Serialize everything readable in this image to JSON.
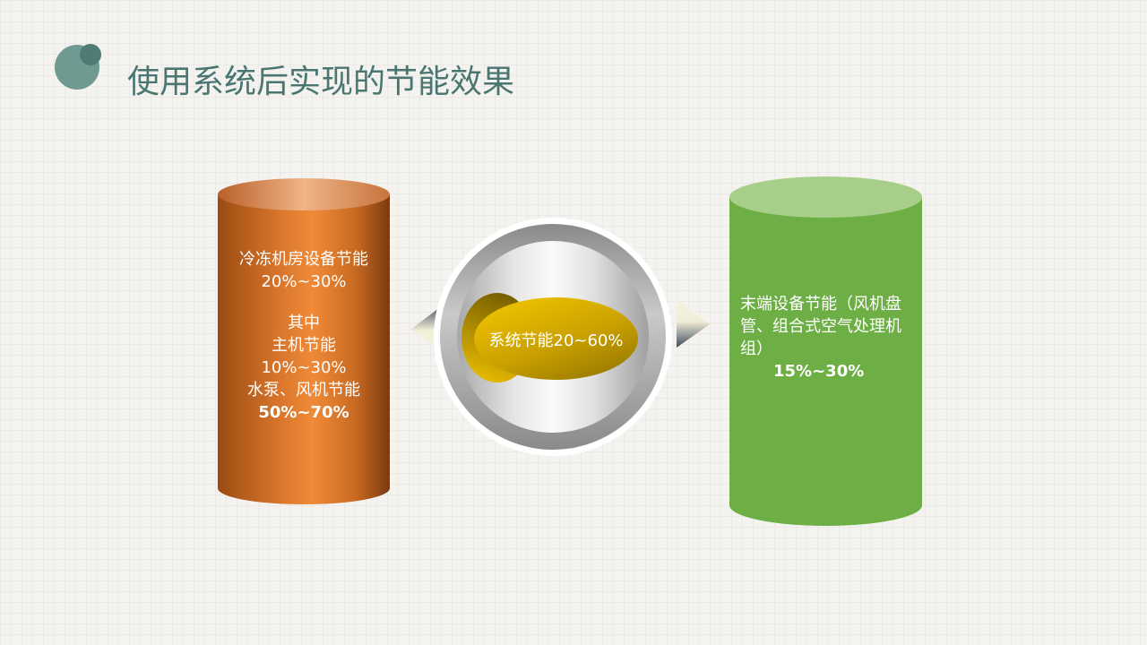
{
  "title": "使用系统后实现的节能效果",
  "colors": {
    "title": "#4a7672",
    "orange": "#e07a2e",
    "green": "#6daf45",
    "gold": "#d4aa00"
  },
  "left_cylinder": {
    "heading": "冷冻机房设备节能",
    "heading_value": "20%~30%",
    "sub_heading": "其中",
    "item1": "主机节能",
    "item1_value": "10%~30%",
    "item2": "水泵、风机节能",
    "item2_value": "50%~70%"
  },
  "center": {
    "label": "系统节能20~60%"
  },
  "right_cylinder": {
    "text": "末端设备节能（风机盘管、组合式空气处理机组）",
    "value": "15%~30%"
  }
}
